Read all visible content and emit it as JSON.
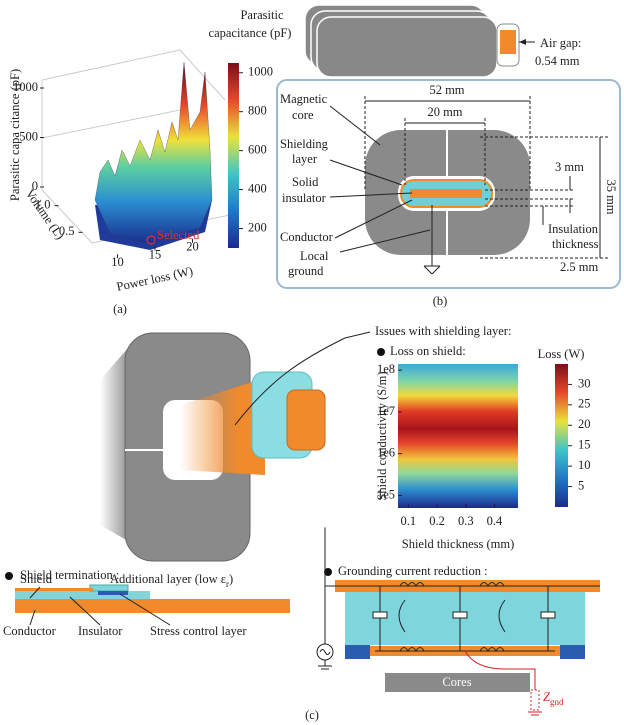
{
  "panel_a": {
    "label": "(a)",
    "z_axis": {
      "label": "Parasitic capa citance (pF)",
      "lim": [
        0,
        1000
      ],
      "ticks": [
        0,
        500,
        1000
      ]
    },
    "y_axis": {
      "label": "Volume (L)",
      "lim": [
        0.3,
        1.2
      ],
      "ticks": [
        0.5,
        {
          "value": 1.0,
          "label": "1.0"
        }
      ]
    },
    "x_axis": {
      "label": "Power loss (W)",
      "lim": [
        5,
        25
      ],
      "ticks": [
        10,
        15,
        20
      ]
    },
    "annotation": "Selected",
    "colorbar": {
      "title": [
        "Parasitic",
        "capacitance (pF)"
      ],
      "lim": [
        100,
        1050
      ],
      "ticks": [
        200,
        400,
        600,
        800,
        1000
      ]
    }
  },
  "panel_b": {
    "label": "(b)",
    "air_gap": [
      "Air gap:",
      "0.54 mm"
    ],
    "dim_outer": "52 mm",
    "dim_inner": "20 mm",
    "dim_small": "3 mm",
    "dim_height": "35 mm",
    "insulation": [
      "Insulation",
      "thickness"
    ],
    "dim_insulation": "2.5 mm",
    "magnetic_core": [
      "Magnetic",
      "core"
    ],
    "shielding_layer": [
      "Shielding",
      "layer"
    ],
    "solid_insulator": [
      "Solid",
      "insulator"
    ],
    "conductor": "Conductor",
    "local_ground": [
      "Local",
      "ground"
    ]
  },
  "panel_c": {
    "label": "(c)",
    "issues": "Issues with shielding layer:",
    "loss_title": "Loss on shield:",
    "heatmap": {
      "y_label": "Shield conductivity (S/m)",
      "log_y": true,
      "ylim": [
        50000,
        140000000
      ],
      "yticks": [
        {
          "value": 100000,
          "label": "1e5"
        },
        {
          "value": 1000000,
          "label": "1e6"
        },
        {
          "value": 10000000,
          "label": "1e7"
        },
        {
          "value": 100000000,
          "label": "1e8"
        }
      ],
      "x_label": "Shield thickness (mm)",
      "xlim": [
        0.064,
        0.482
      ],
      "xticks": [
        0.1,
        0.2,
        0.3,
        0.4
      ],
      "colorbar": {
        "title": "Loss (W)",
        "lim": [
          0,
          35
        ],
        "ticks": [
          5,
          10,
          15,
          20,
          25,
          30
        ]
      }
    },
    "termination": {
      "title": "Shield termination :",
      "shield": "Shield",
      "additional": "Additional layer (low ε",
      "additional_sub": "r",
      "additional_end": ")",
      "conductor": "Conductor",
      "insulator": "Insulator",
      "stress": "Stress control layer"
    },
    "grounding": {
      "title": "Grounding current reduction :",
      "cores": "Cores",
      "z": "Z",
      "z_sub": "gnd"
    }
  }
}
